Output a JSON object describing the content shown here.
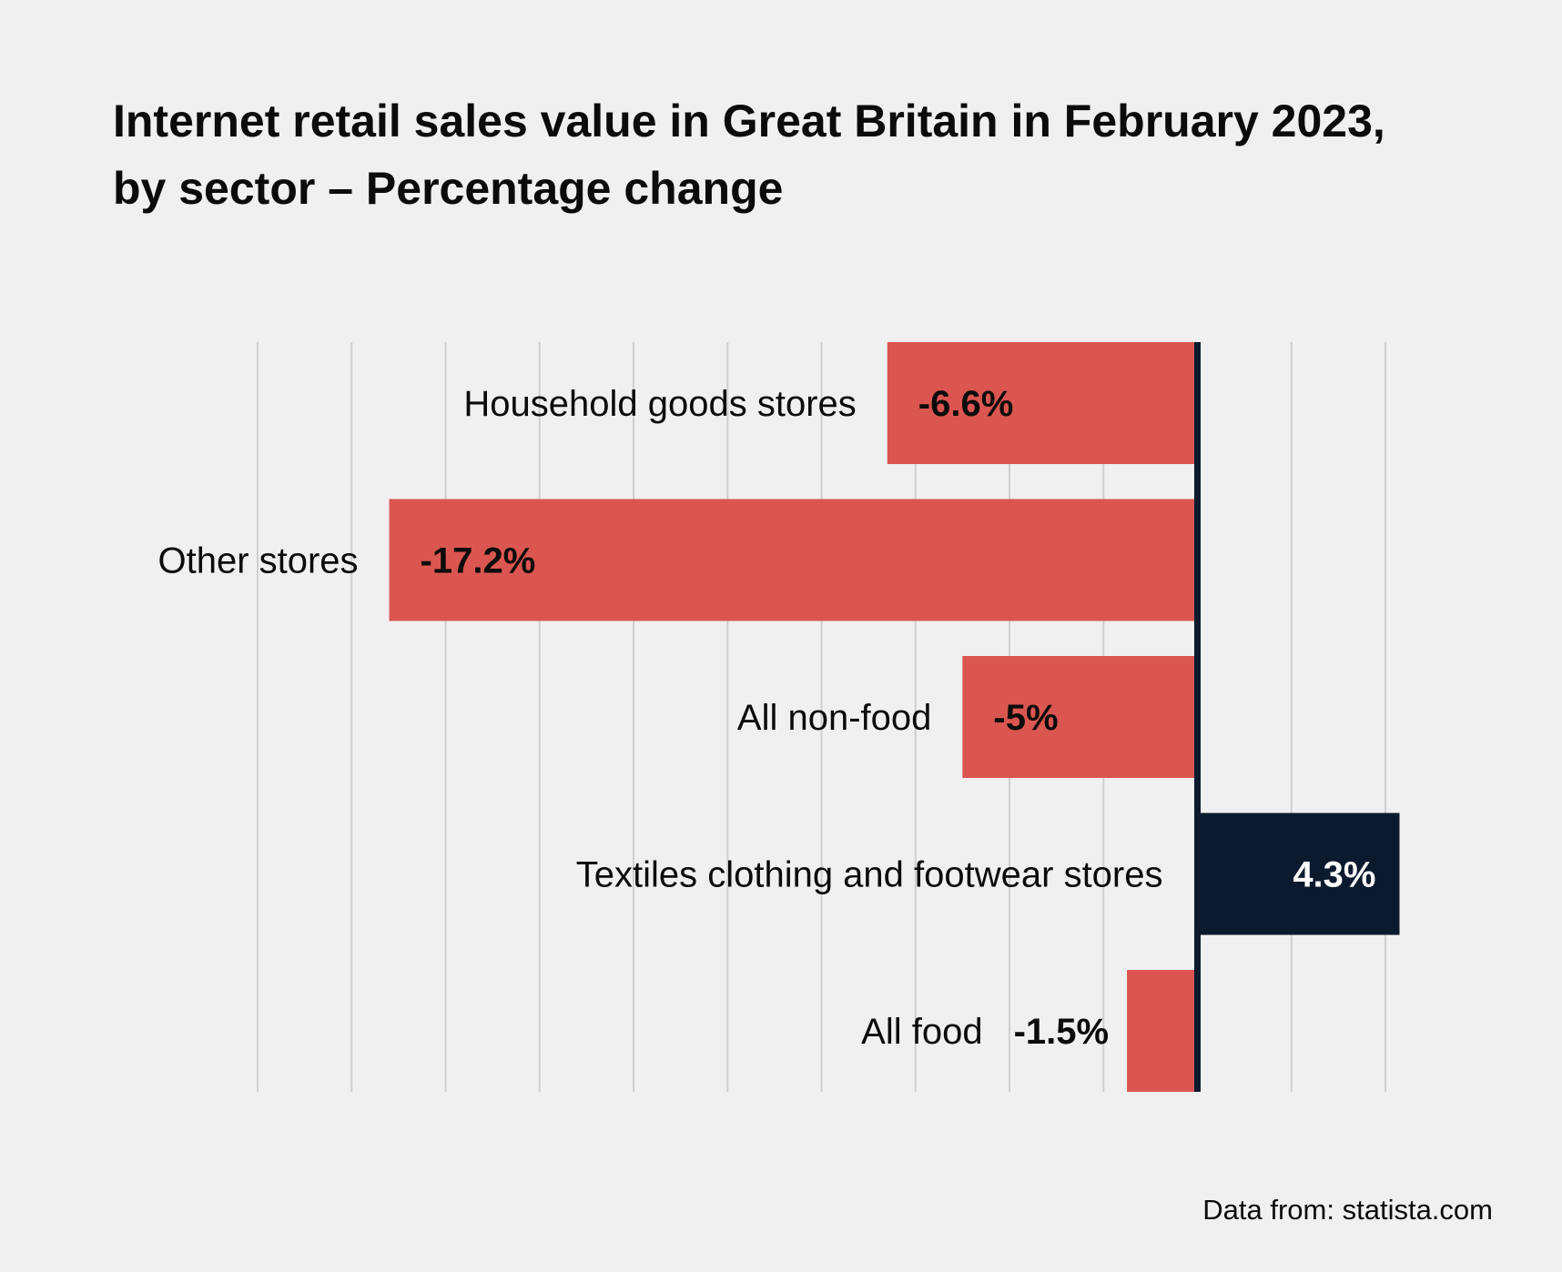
{
  "chart_data": {
    "type": "bar",
    "orientation": "horizontal",
    "title": "Internet retail sales value in Great Britain in February 2023, by sector – Percentage change",
    "categories": [
      "Household goods stores",
      "Other stores",
      "All non-food",
      "Textiles clothing and footwear stores",
      "All food"
    ],
    "values": [
      -6.6,
      -17.2,
      -5,
      4.3,
      -1.5
    ],
    "value_labels": [
      "-6.6%",
      "-17.2%",
      "-5%",
      "4.3%",
      "-1.5%"
    ],
    "xlim": [
      -20,
      4
    ],
    "grid_step": 2,
    "grid": true,
    "xlabel": "",
    "ylabel": "",
    "colors": {
      "negative": "#db5650",
      "positive": "#0c1a2e",
      "zero_line": "#0c1a2e",
      "grid": "#cfcfcf",
      "label_dark": "#0b0b0b",
      "label_light": "#ffffff"
    }
  },
  "footer": {
    "source": "Data from: statista.com"
  }
}
